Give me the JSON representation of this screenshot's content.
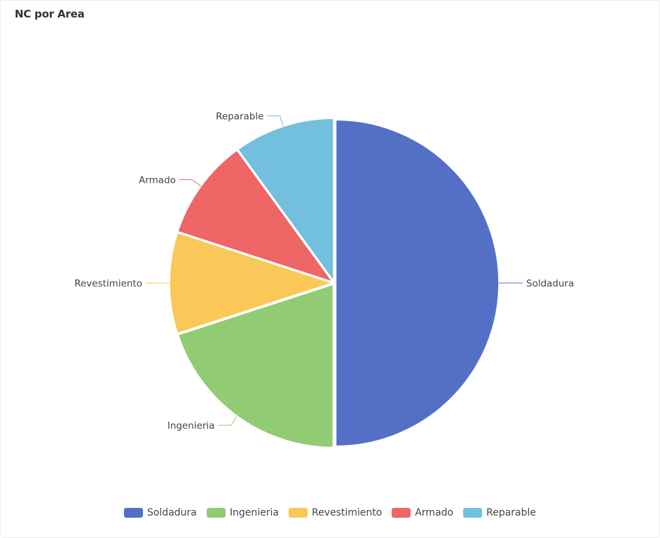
{
  "card": {
    "title": "NC por Area"
  },
  "chart_data": {
    "type": "pie",
    "title": "NC por Area",
    "categories": [
      "Soldadura",
      "Ingenieria",
      "Revestimiento",
      "Armado",
      "Reparable"
    ],
    "values": [
      50,
      20,
      10,
      10,
      10
    ],
    "colors": [
      "#5470c6",
      "#91cc75",
      "#fac858",
      "#ee6666",
      "#73c0de"
    ],
    "legend_position": "bottom"
  }
}
